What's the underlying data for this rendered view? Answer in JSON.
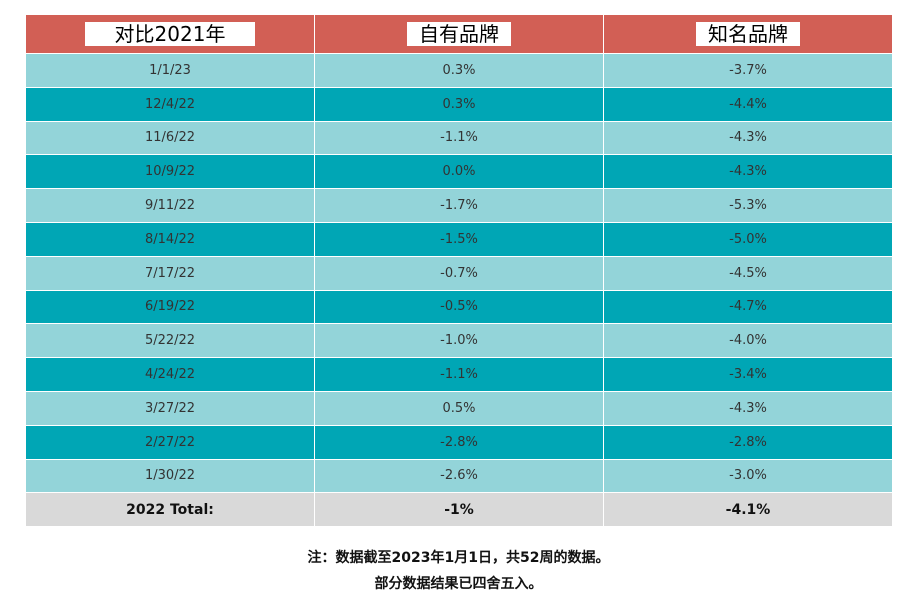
{
  "table": {
    "header": [
      "对比2021年",
      "自有品牌",
      "知名品牌"
    ],
    "rows": [
      [
        "1/1/23",
        "0.3%",
        "-3.7%"
      ],
      [
        "12/4/22",
        "0.3%",
        "-4.4%"
      ],
      [
        "11/6/22",
        "-1.1%",
        "-4.3%"
      ],
      [
        "10/9/22",
        "0.0%",
        "-4.3%"
      ],
      [
        "9/11/22",
        "-1.7%",
        "-5.3%"
      ],
      [
        "8/14/22",
        "-1.5%",
        "-5.0%"
      ],
      [
        "7/17/22",
        "-0.7%",
        "-4.5%"
      ],
      [
        "6/19/22",
        "-0.5%",
        "-4.7%"
      ],
      [
        "5/22/22",
        "-1.0%",
        "-4.0%"
      ],
      [
        "4/24/22",
        "-1.1%",
        "-3.4%"
      ],
      [
        "3/27/22",
        "0.5%",
        "-4.3%"
      ],
      [
        "2/27/22",
        "-2.8%",
        "-2.8%"
      ],
      [
        "1/30/22",
        "-2.6%",
        "-3.0%"
      ]
    ],
    "total": [
      "2022 Total:",
      "-1%",
      "-4.1%"
    ]
  },
  "notes": [
    "注：数据截至2023年1月1日，共52周的数据。",
    "部分数据结果已四舍五入。"
  ]
}
